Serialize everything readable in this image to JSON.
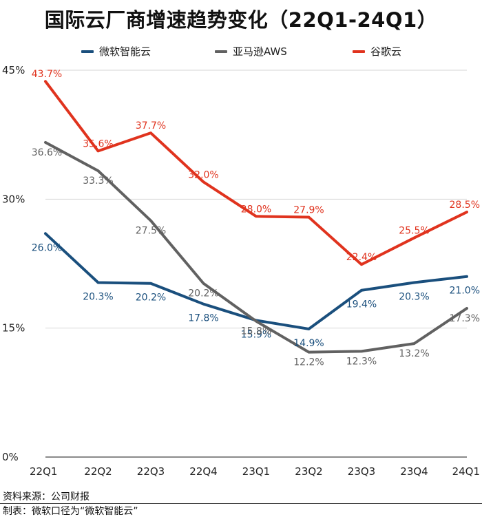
{
  "title": "国际云厂商增速趋势变化（22Q1-24Q1）",
  "chart_data": {
    "type": "line",
    "categories": [
      "22Q1",
      "22Q2",
      "22Q3",
      "22Q4",
      "23Q1",
      "23Q2",
      "23Q3",
      "23Q4",
      "24Q1"
    ],
    "y_ticks": [
      "0%",
      "15%",
      "30%",
      "45%"
    ],
    "ylim": [
      0,
      45
    ],
    "grid": true,
    "legend_position": "top",
    "series": [
      {
        "name": "微软智能云",
        "color": "#1a4f7d",
        "values": [
          26.0,
          20.3,
          20.2,
          17.8,
          15.9,
          14.9,
          19.4,
          20.3,
          21.0
        ],
        "labels": [
          "26.0%",
          "20.3%",
          "20.2%",
          "17.8%",
          "15.9%",
          "14.9%",
          "19.4%",
          "20.3%",
          "21.0%"
        ]
      },
      {
        "name": "亚马逊AWS",
        "color": "#616161",
        "values": [
          36.6,
          33.3,
          27.5,
          20.2,
          15.8,
          12.2,
          12.3,
          13.2,
          17.3
        ],
        "labels": [
          "36.6%",
          "33.3%",
          "27.5%",
          "20.2%",
          "15.8%",
          "12.2%",
          "12.3%",
          "13.2%",
          "17.3%"
        ]
      },
      {
        "name": "谷歌云",
        "color": "#e0331e",
        "values": [
          43.7,
          35.6,
          37.7,
          32.0,
          28.0,
          27.9,
          22.4,
          25.5,
          28.5
        ],
        "labels": [
          "43.7%",
          "35.6%",
          "37.7%",
          "32.0%",
          "28.0%",
          "27.9%",
          "22.4%",
          "25.5%",
          "28.5%"
        ]
      }
    ]
  },
  "footer": {
    "source": "资料来源：公司财报",
    "note": "制表：微软口径为“微软智能云”"
  }
}
